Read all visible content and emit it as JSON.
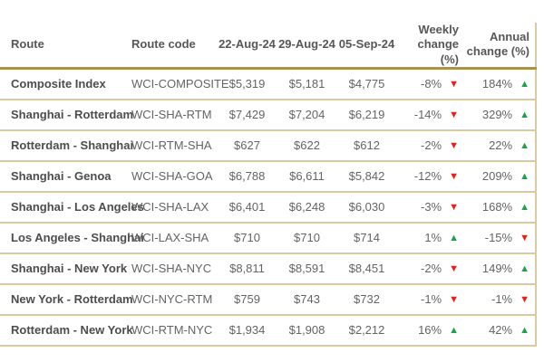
{
  "chart_data": {
    "type": "table",
    "columns": [
      {
        "id": "route",
        "label": "Route",
        "align": "left"
      },
      {
        "id": "code",
        "label": "Route code",
        "align": "left"
      },
      {
        "id": "w1",
        "label": "22-Aug-24",
        "align": "center"
      },
      {
        "id": "w2",
        "label": "29-Aug-24",
        "align": "center"
      },
      {
        "id": "w3",
        "label": "05-Sep-24",
        "align": "center"
      },
      {
        "id": "weekly",
        "label": "Weekly change (%)",
        "align": "right"
      },
      {
        "id": "annual",
        "label": "Annual change (%)",
        "align": "right"
      }
    ],
    "rows": [
      {
        "route": "Composite Index",
        "code": "WCI-COMPOSITE",
        "w1": "$5,319",
        "w2": "$5,181",
        "w3": "$4,775",
        "weekly": "-8%",
        "weekly_dir": "down",
        "annual": "184%",
        "annual_dir": "up"
      },
      {
        "route": "Shanghai - Rotterdam",
        "code": "WCI-SHA-RTM",
        "w1": "$7,429",
        "w2": "$7,204",
        "w3": "$6,219",
        "weekly": "-14%",
        "weekly_dir": "down",
        "annual": "329%",
        "annual_dir": "up"
      },
      {
        "route": "Rotterdam - Shanghai",
        "code": "WCI-RTM-SHA",
        "w1": "$627",
        "w2": "$622",
        "w3": "$612",
        "weekly": "-2%",
        "weekly_dir": "down",
        "annual": "22%",
        "annual_dir": "up"
      },
      {
        "route": "Shanghai - Genoa",
        "code": "WCI-SHA-GOA",
        "w1": "$6,788",
        "w2": "$6,611",
        "w3": "$5,842",
        "weekly": "-12%",
        "weekly_dir": "down",
        "annual": "209%",
        "annual_dir": "up"
      },
      {
        "route": "Shanghai - Los Angeles",
        "code": "WCI-SHA-LAX",
        "w1": "$6,401",
        "w2": "$6,248",
        "w3": "$6,030",
        "weekly": "-3%",
        "weekly_dir": "down",
        "annual": "168%",
        "annual_dir": "up"
      },
      {
        "route": "Los Angeles - Shanghai",
        "code": "WCI-LAX-SHA",
        "w1": "$710",
        "w2": "$710",
        "w3": "$714",
        "weekly": "1%",
        "weekly_dir": "up",
        "annual": "-15%",
        "annual_dir": "down"
      },
      {
        "route": "Shanghai - New York",
        "code": "WCI-SHA-NYC",
        "w1": "$8,811",
        "w2": "$8,591",
        "w3": "$8,451",
        "weekly": "-2%",
        "weekly_dir": "down",
        "annual": "149%",
        "annual_dir": "up"
      },
      {
        "route": "New York - Rotterdam",
        "code": "WCI-NYC-RTM",
        "w1": "$759",
        "w2": "$743",
        "w3": "$732",
        "weekly": "-1%",
        "weekly_dir": "down",
        "annual": "-1%",
        "annual_dir": "down"
      },
      {
        "route": "Rotterdam - New York",
        "code": "WCI-RTM-NYC",
        "w1": "$1,934",
        "w2": "$1,908",
        "w3": "$2,212",
        "weekly": "16%",
        "weekly_dir": "up",
        "annual": "42%",
        "annual_dir": "up"
      }
    ]
  },
  "icons": {
    "up_arrow": "▲",
    "down_arrow": "▼"
  },
  "colors": {
    "header_rule_gold": "#a9914f",
    "row_rule_tan": "#d9cba1",
    "header_text": "#565759",
    "route_text": "#4d4d4f",
    "cell_text": "#636466",
    "up_green": "#1fa14b",
    "down_red": "#e2231a"
  }
}
